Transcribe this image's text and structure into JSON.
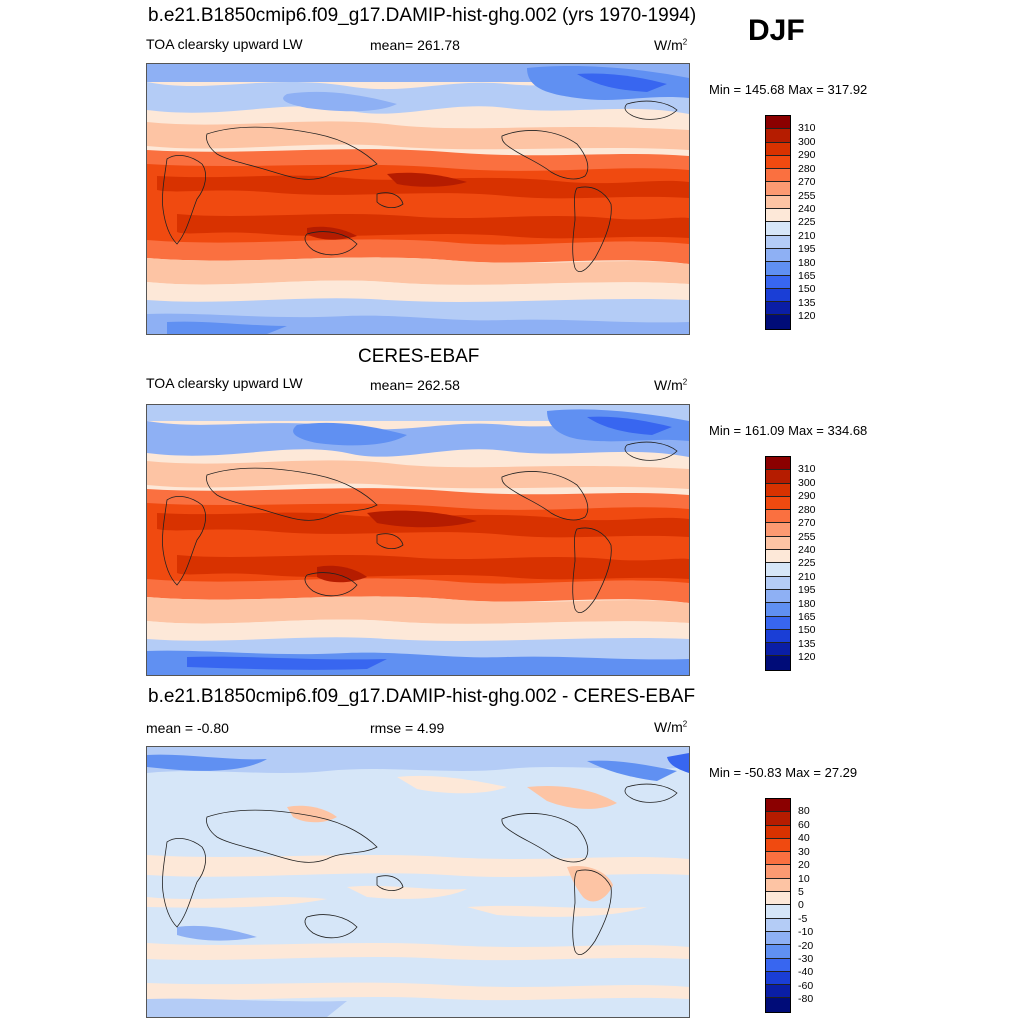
{
  "season": "DJF",
  "panels": [
    {
      "title": "b.e21.B1850cmip6.f09_g17.DAMIP-hist-ghg.002 (yrs 1970-1994)",
      "left_label": "TOA clearsky upward LW",
      "center_label": "mean= 261.78",
      "units": "W/m",
      "units_exp": "2",
      "minmax": "Min = 145.68 Max = 317.92",
      "levels": [
        "310",
        "300",
        "290",
        "280",
        "270",
        "255",
        "240",
        "225",
        "210",
        "195",
        "180",
        "165",
        "150",
        "135",
        "120"
      ]
    },
    {
      "title": "CERES-EBAF",
      "left_label": "TOA clearsky upward LW",
      "center_label": "mean= 262.58",
      "units": "W/m",
      "units_exp": "2",
      "minmax": "Min = 161.09 Max = 334.68",
      "levels": [
        "310",
        "300",
        "290",
        "280",
        "270",
        "255",
        "240",
        "225",
        "210",
        "195",
        "180",
        "165",
        "150",
        "135",
        "120"
      ]
    },
    {
      "title": "b.e21.B1850cmip6.f09_g17.DAMIP-hist-ghg.002 - CERES-EBAF",
      "left_label": "mean =  -0.80",
      "center_label": "rmse =   4.99",
      "units": "W/m",
      "units_exp": "2",
      "minmax": "Min = -50.83 Max =  27.29",
      "levels": [
        "80",
        "60",
        "40",
        "30",
        "20",
        "10",
        "5",
        "0",
        "-5",
        "-10",
        "-20",
        "-30",
        "-40",
        "-60",
        "-80"
      ]
    }
  ],
  "colors": {
    "abs_scale": [
      "#8b0000",
      "#b51c00",
      "#d83200",
      "#f04a10",
      "#fa7040",
      "#fc9a72",
      "#fdc4a4",
      "#fde8d8",
      "#d6e6f8",
      "#b4ccf6",
      "#8eb0f4",
      "#6090f2",
      "#3866f0",
      "#1a3ed6",
      "#0a1ea6",
      "#000c78"
    ],
    "diff_scale": [
      "#8b0000",
      "#b51c00",
      "#d83200",
      "#f04a10",
      "#fa7040",
      "#fc9a72",
      "#fdc4a4",
      "#fde8d8",
      "#d6e6f8",
      "#b4ccf6",
      "#8eb0f4",
      "#6090f2",
      "#3866f0",
      "#1a3ed6",
      "#0a1ea6",
      "#000c78"
    ]
  }
}
